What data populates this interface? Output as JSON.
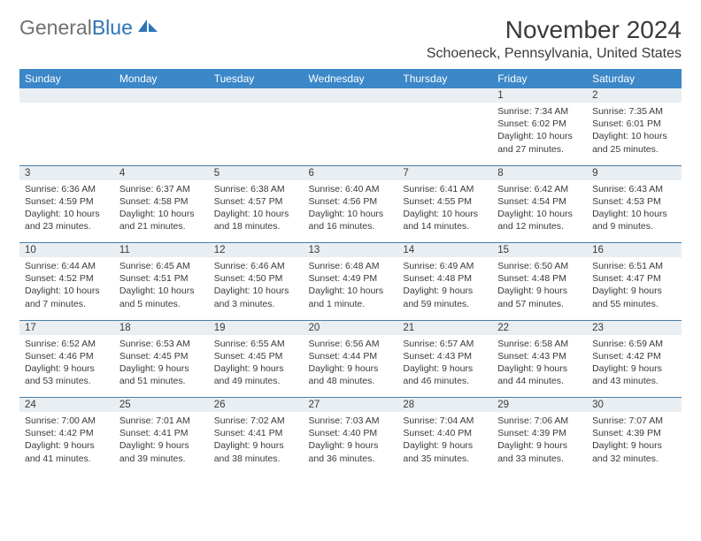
{
  "logo": {
    "text1": "General",
    "text2": "Blue"
  },
  "title": "November 2024",
  "location": "Schoeneck, Pennsylvania, United States",
  "weekdays": [
    "Sunday",
    "Monday",
    "Tuesday",
    "Wednesday",
    "Thursday",
    "Friday",
    "Saturday"
  ],
  "colors": {
    "header_bg": "#3b87c8",
    "header_fg": "#ffffff",
    "daynum_bg": "#e9eef2",
    "rule": "#4a7fa8",
    "text": "#3a3a3a",
    "logo_blue": "#2c75b6"
  },
  "weeks": [
    [
      {
        "num": "",
        "lines": []
      },
      {
        "num": "",
        "lines": []
      },
      {
        "num": "",
        "lines": []
      },
      {
        "num": "",
        "lines": []
      },
      {
        "num": "",
        "lines": []
      },
      {
        "num": "1",
        "lines": [
          "Sunrise: 7:34 AM",
          "Sunset: 6:02 PM",
          "Daylight: 10 hours",
          "and 27 minutes."
        ]
      },
      {
        "num": "2",
        "lines": [
          "Sunrise: 7:35 AM",
          "Sunset: 6:01 PM",
          "Daylight: 10 hours",
          "and 25 minutes."
        ]
      }
    ],
    [
      {
        "num": "3",
        "lines": [
          "Sunrise: 6:36 AM",
          "Sunset: 4:59 PM",
          "Daylight: 10 hours",
          "and 23 minutes."
        ]
      },
      {
        "num": "4",
        "lines": [
          "Sunrise: 6:37 AM",
          "Sunset: 4:58 PM",
          "Daylight: 10 hours",
          "and 21 minutes."
        ]
      },
      {
        "num": "5",
        "lines": [
          "Sunrise: 6:38 AM",
          "Sunset: 4:57 PM",
          "Daylight: 10 hours",
          "and 18 minutes."
        ]
      },
      {
        "num": "6",
        "lines": [
          "Sunrise: 6:40 AM",
          "Sunset: 4:56 PM",
          "Daylight: 10 hours",
          "and 16 minutes."
        ]
      },
      {
        "num": "7",
        "lines": [
          "Sunrise: 6:41 AM",
          "Sunset: 4:55 PM",
          "Daylight: 10 hours",
          "and 14 minutes."
        ]
      },
      {
        "num": "8",
        "lines": [
          "Sunrise: 6:42 AM",
          "Sunset: 4:54 PM",
          "Daylight: 10 hours",
          "and 12 minutes."
        ]
      },
      {
        "num": "9",
        "lines": [
          "Sunrise: 6:43 AM",
          "Sunset: 4:53 PM",
          "Daylight: 10 hours",
          "and 9 minutes."
        ]
      }
    ],
    [
      {
        "num": "10",
        "lines": [
          "Sunrise: 6:44 AM",
          "Sunset: 4:52 PM",
          "Daylight: 10 hours",
          "and 7 minutes."
        ]
      },
      {
        "num": "11",
        "lines": [
          "Sunrise: 6:45 AM",
          "Sunset: 4:51 PM",
          "Daylight: 10 hours",
          "and 5 minutes."
        ]
      },
      {
        "num": "12",
        "lines": [
          "Sunrise: 6:46 AM",
          "Sunset: 4:50 PM",
          "Daylight: 10 hours",
          "and 3 minutes."
        ]
      },
      {
        "num": "13",
        "lines": [
          "Sunrise: 6:48 AM",
          "Sunset: 4:49 PM",
          "Daylight: 10 hours",
          "and 1 minute."
        ]
      },
      {
        "num": "14",
        "lines": [
          "Sunrise: 6:49 AM",
          "Sunset: 4:48 PM",
          "Daylight: 9 hours",
          "and 59 minutes."
        ]
      },
      {
        "num": "15",
        "lines": [
          "Sunrise: 6:50 AM",
          "Sunset: 4:48 PM",
          "Daylight: 9 hours",
          "and 57 minutes."
        ]
      },
      {
        "num": "16",
        "lines": [
          "Sunrise: 6:51 AM",
          "Sunset: 4:47 PM",
          "Daylight: 9 hours",
          "and 55 minutes."
        ]
      }
    ],
    [
      {
        "num": "17",
        "lines": [
          "Sunrise: 6:52 AM",
          "Sunset: 4:46 PM",
          "Daylight: 9 hours",
          "and 53 minutes."
        ]
      },
      {
        "num": "18",
        "lines": [
          "Sunrise: 6:53 AM",
          "Sunset: 4:45 PM",
          "Daylight: 9 hours",
          "and 51 minutes."
        ]
      },
      {
        "num": "19",
        "lines": [
          "Sunrise: 6:55 AM",
          "Sunset: 4:45 PM",
          "Daylight: 9 hours",
          "and 49 minutes."
        ]
      },
      {
        "num": "20",
        "lines": [
          "Sunrise: 6:56 AM",
          "Sunset: 4:44 PM",
          "Daylight: 9 hours",
          "and 48 minutes."
        ]
      },
      {
        "num": "21",
        "lines": [
          "Sunrise: 6:57 AM",
          "Sunset: 4:43 PM",
          "Daylight: 9 hours",
          "and 46 minutes."
        ]
      },
      {
        "num": "22",
        "lines": [
          "Sunrise: 6:58 AM",
          "Sunset: 4:43 PM",
          "Daylight: 9 hours",
          "and 44 minutes."
        ]
      },
      {
        "num": "23",
        "lines": [
          "Sunrise: 6:59 AM",
          "Sunset: 4:42 PM",
          "Daylight: 9 hours",
          "and 43 minutes."
        ]
      }
    ],
    [
      {
        "num": "24",
        "lines": [
          "Sunrise: 7:00 AM",
          "Sunset: 4:42 PM",
          "Daylight: 9 hours",
          "and 41 minutes."
        ]
      },
      {
        "num": "25",
        "lines": [
          "Sunrise: 7:01 AM",
          "Sunset: 4:41 PM",
          "Daylight: 9 hours",
          "and 39 minutes."
        ]
      },
      {
        "num": "26",
        "lines": [
          "Sunrise: 7:02 AM",
          "Sunset: 4:41 PM",
          "Daylight: 9 hours",
          "and 38 minutes."
        ]
      },
      {
        "num": "27",
        "lines": [
          "Sunrise: 7:03 AM",
          "Sunset: 4:40 PM",
          "Daylight: 9 hours",
          "and 36 minutes."
        ]
      },
      {
        "num": "28",
        "lines": [
          "Sunrise: 7:04 AM",
          "Sunset: 4:40 PM",
          "Daylight: 9 hours",
          "and 35 minutes."
        ]
      },
      {
        "num": "29",
        "lines": [
          "Sunrise: 7:06 AM",
          "Sunset: 4:39 PM",
          "Daylight: 9 hours",
          "and 33 minutes."
        ]
      },
      {
        "num": "30",
        "lines": [
          "Sunrise: 7:07 AM",
          "Sunset: 4:39 PM",
          "Daylight: 9 hours",
          "and 32 minutes."
        ]
      }
    ]
  ]
}
